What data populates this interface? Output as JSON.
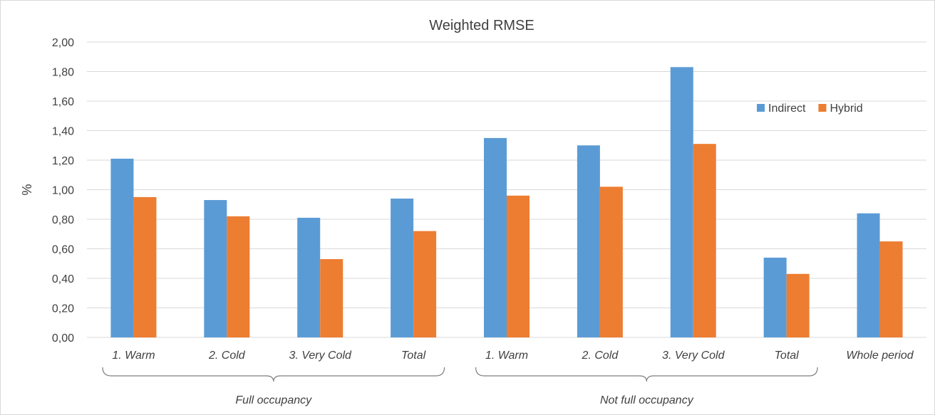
{
  "chart_data": {
    "type": "bar",
    "title": "Weighted RMSE",
    "ylabel": "%",
    "xlabel": "",
    "ylim": [
      0,
      2
    ],
    "yticks": [
      "0,00",
      "0,20",
      "0,40",
      "0,60",
      "0,80",
      "1,00",
      "1,20",
      "1,40",
      "1,60",
      "1,80",
      "2,00"
    ],
    "grid": true,
    "legend_position": "top-right",
    "categories": [
      "1. Warm",
      "2. Cold",
      "3. Very Cold",
      "Total",
      "1. Warm",
      "2. Cold",
      "3. Very Cold",
      "Total",
      "Whole period"
    ],
    "groups": [
      {
        "label": "Full occupancy",
        "from": 0,
        "to": 3
      },
      {
        "label": "Not full occupancy",
        "from": 4,
        "to": 7
      }
    ],
    "series": [
      {
        "name": "Indirect",
        "color": "#5b9bd5",
        "values": [
          1.21,
          0.93,
          0.81,
          0.94,
          1.35,
          1.3,
          1.83,
          0.54,
          0.84
        ]
      },
      {
        "name": "Hybrid",
        "color": "#ed7d31",
        "values": [
          0.95,
          0.82,
          0.53,
          0.72,
          0.96,
          1.02,
          1.31,
          0.43,
          0.65
        ]
      }
    ]
  }
}
